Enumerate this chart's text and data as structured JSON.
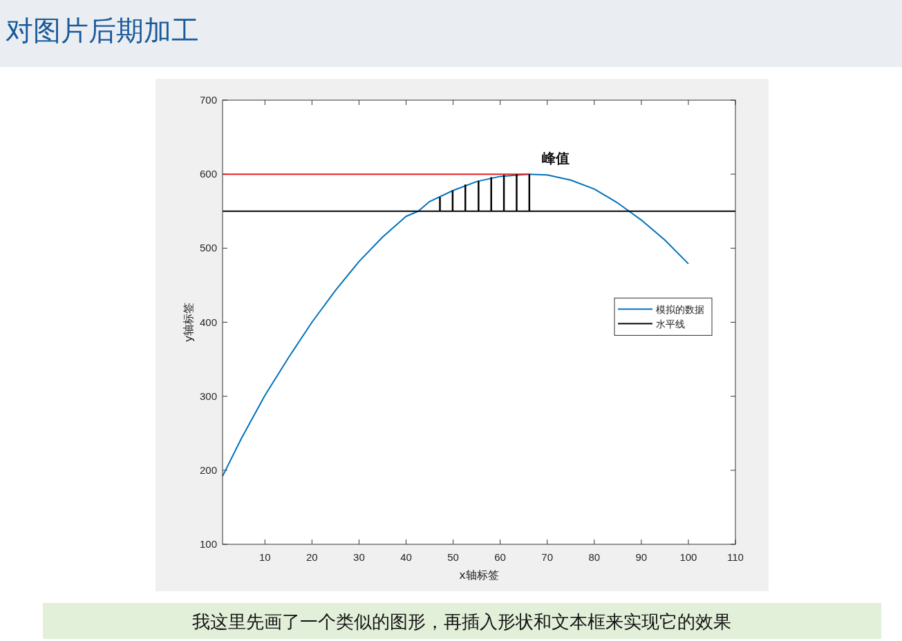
{
  "chart_data": {
    "type": "line",
    "title": "对图片后期加工",
    "xlabel": "x轴标签",
    "ylabel": "y轴标签",
    "xlim": [
      1,
      110
    ],
    "ylim": [
      100,
      700
    ],
    "xticks": [
      10,
      20,
      30,
      40,
      50,
      60,
      70,
      80,
      90,
      100,
      110
    ],
    "yticks": [
      100,
      200,
      300,
      400,
      500,
      600,
      700
    ],
    "legend": "right",
    "series": [
      {
        "name": "模拟的数据",
        "color": "#0072bd",
        "x": [
          1,
          5,
          10,
          15,
          20,
          25,
          30,
          35,
          40,
          42.6,
          45,
          50,
          55,
          60,
          66,
          70,
          75,
          80,
          85,
          87.4,
          90,
          95,
          100
        ],
        "values": [
          192,
          243,
          301,
          352,
          400,
          443,
          482,
          515,
          543,
          550,
          563,
          578,
          590,
          597,
          600,
          599,
          592,
          580,
          561,
          550,
          538,
          511,
          479
        ]
      },
      {
        "name": "水平线",
        "color": "#000000",
        "x": [
          1,
          110
        ],
        "values": [
          550,
          550
        ]
      },
      {
        "color": "#e5201c",
        "x": [
          1,
          66.2
        ],
        "values": [
          600,
          600
        ]
      },
      {
        "color": "#000000",
        "x": [
          47.2,
          47.2
        ],
        "values": [
          550,
          569
        ]
      },
      {
        "color": "#000000",
        "x": [
          49.9,
          49.9
        ],
        "values": [
          550,
          578
        ]
      },
      {
        "color": "#000000",
        "x": [
          52.6,
          52.6
        ],
        "values": [
          550,
          586
        ]
      },
      {
        "color": "#000000",
        "x": [
          55.4,
          55.4
        ],
        "values": [
          550,
          591
        ]
      },
      {
        "color": "#000000",
        "x": [
          58.1,
          58.1
        ],
        "values": [
          550,
          596
        ]
      },
      {
        "color": "#000000",
        "x": [
          60.8,
          60.8
        ],
        "values": [
          550,
          599
        ]
      },
      {
        "color": "#000000",
        "x": [
          63.5,
          63.5
        ],
        "values": [
          550,
          600
        ]
      },
      {
        "color": "#000000",
        "x": [
          66.2,
          66.2
        ],
        "values": [
          550,
          600
        ]
      }
    ],
    "annotations": [
      {
        "text": "峰值",
        "x": 66.2,
        "y": 600
      },
      "我这里先画了一个类似的图形，再插入形状和文本框来实现它的效果"
    ]
  }
}
